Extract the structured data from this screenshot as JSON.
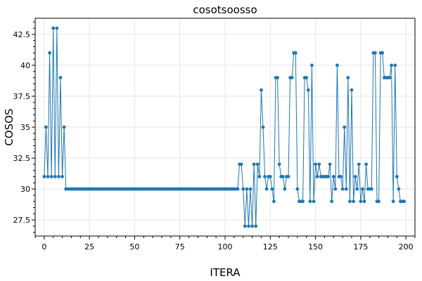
{
  "chart_data": {
    "type": "line",
    "title": "cosotsoosso",
    "xlabel": "ITERA",
    "ylabel": "COSOS",
    "xlim": [
      -5,
      205
    ],
    "ylim": [
      26.2,
      43.8
    ],
    "xticks": [
      0,
      25,
      50,
      75,
      100,
      125,
      150,
      175,
      200
    ],
    "yticks": [
      27.5,
      30,
      32.5,
      35,
      37.5,
      40,
      42.5
    ],
    "ytick_labels": [
      "27.5",
      "30",
      "32.5",
      "35",
      "37.5",
      "40",
      "42.5"
    ],
    "grid": true,
    "color": "#1f77b4",
    "series": [
      {
        "x": [
          0,
          1,
          2,
          3,
          4,
          5,
          6,
          7,
          8,
          9,
          10,
          11,
          12,
          13,
          14,
          15,
          16,
          17,
          18,
          19,
          20,
          21,
          22,
          23,
          24,
          25,
          26,
          27,
          28,
          29,
          30,
          31,
          32,
          33,
          34,
          35,
          36,
          37,
          38,
          39,
          40,
          41,
          42,
          43,
          44,
          45,
          46,
          47,
          48,
          49,
          50,
          51,
          52,
          53,
          54,
          55,
          56,
          57,
          58,
          59,
          60,
          61,
          62,
          63,
          64,
          65,
          66,
          67,
          68,
          69,
          70,
          71,
          72,
          73,
          74,
          75,
          76,
          77,
          78,
          79,
          80,
          81,
          82,
          83,
          84,
          85,
          86,
          87,
          88,
          89,
          90,
          91,
          92,
          93,
          94,
          95,
          96,
          97,
          98,
          99,
          100,
          101,
          102,
          103,
          104,
          105,
          106,
          107,
          108,
          109,
          110,
          111,
          112,
          113,
          114,
          115,
          116,
          117,
          118,
          119,
          120,
          121,
          122,
          123,
          124,
          125,
          126,
          127,
          128,
          129,
          130,
          131,
          132,
          133,
          134,
          135,
          136,
          137,
          138,
          139,
          140,
          141,
          142,
          143,
          144,
          145,
          146,
          147,
          148,
          149,
          150,
          151,
          152,
          153,
          154,
          155,
          156,
          157,
          158,
          159,
          160,
          161,
          162,
          163,
          164,
          165,
          166,
          167,
          168,
          169,
          170,
          171,
          172,
          173,
          174,
          175,
          176,
          177,
          178,
          179,
          180,
          181,
          182,
          183,
          184,
          185,
          186,
          187,
          188,
          189,
          190,
          191,
          192,
          193,
          194,
          195,
          196,
          197,
          198,
          199
        ],
        "y": [
          31,
          35,
          31,
          41,
          31,
          43,
          31,
          43,
          31,
          39,
          31,
          35,
          30,
          30,
          30,
          30,
          30,
          30,
          30,
          30,
          30,
          30,
          30,
          30,
          30,
          30,
          30,
          30,
          30,
          30,
          30,
          30,
          30,
          30,
          30,
          30,
          30,
          30,
          30,
          30,
          30,
          30,
          30,
          30,
          30,
          30,
          30,
          30,
          30,
          30,
          30,
          30,
          30,
          30,
          30,
          30,
          30,
          30,
          30,
          30,
          30,
          30,
          30,
          30,
          30,
          30,
          30,
          30,
          30,
          30,
          30,
          30,
          30,
          30,
          30,
          30,
          30,
          30,
          30,
          30,
          30,
          30,
          30,
          30,
          30,
          30,
          30,
          30,
          30,
          30,
          30,
          30,
          30,
          30,
          30,
          30,
          30,
          30,
          30,
          30,
          30,
          30,
          30,
          30,
          30,
          30,
          30,
          30,
          32,
          32,
          30,
          27,
          30,
          27,
          30,
          27,
          32,
          27,
          32,
          31,
          38,
          35,
          31,
          30,
          31,
          31,
          30,
          29,
          39,
          39,
          32,
          31,
          31,
          30,
          31,
          31,
          39,
          39,
          41,
          41,
          30,
          29,
          29,
          29,
          39,
          39,
          38,
          29,
          40,
          29,
          32,
          31,
          32,
          31,
          31,
          31,
          31,
          31,
          32,
          29,
          31,
          30,
          40,
          31,
          31,
          30,
          35,
          30,
          39,
          29,
          38,
          29,
          31,
          30,
          32,
          29,
          30,
          29,
          32,
          30,
          30,
          30,
          41,
          41,
          29,
          29,
          41,
          41,
          39,
          39,
          39,
          39,
          40,
          29,
          40,
          31,
          30,
          29,
          29,
          29
        ]
      }
    ]
  }
}
